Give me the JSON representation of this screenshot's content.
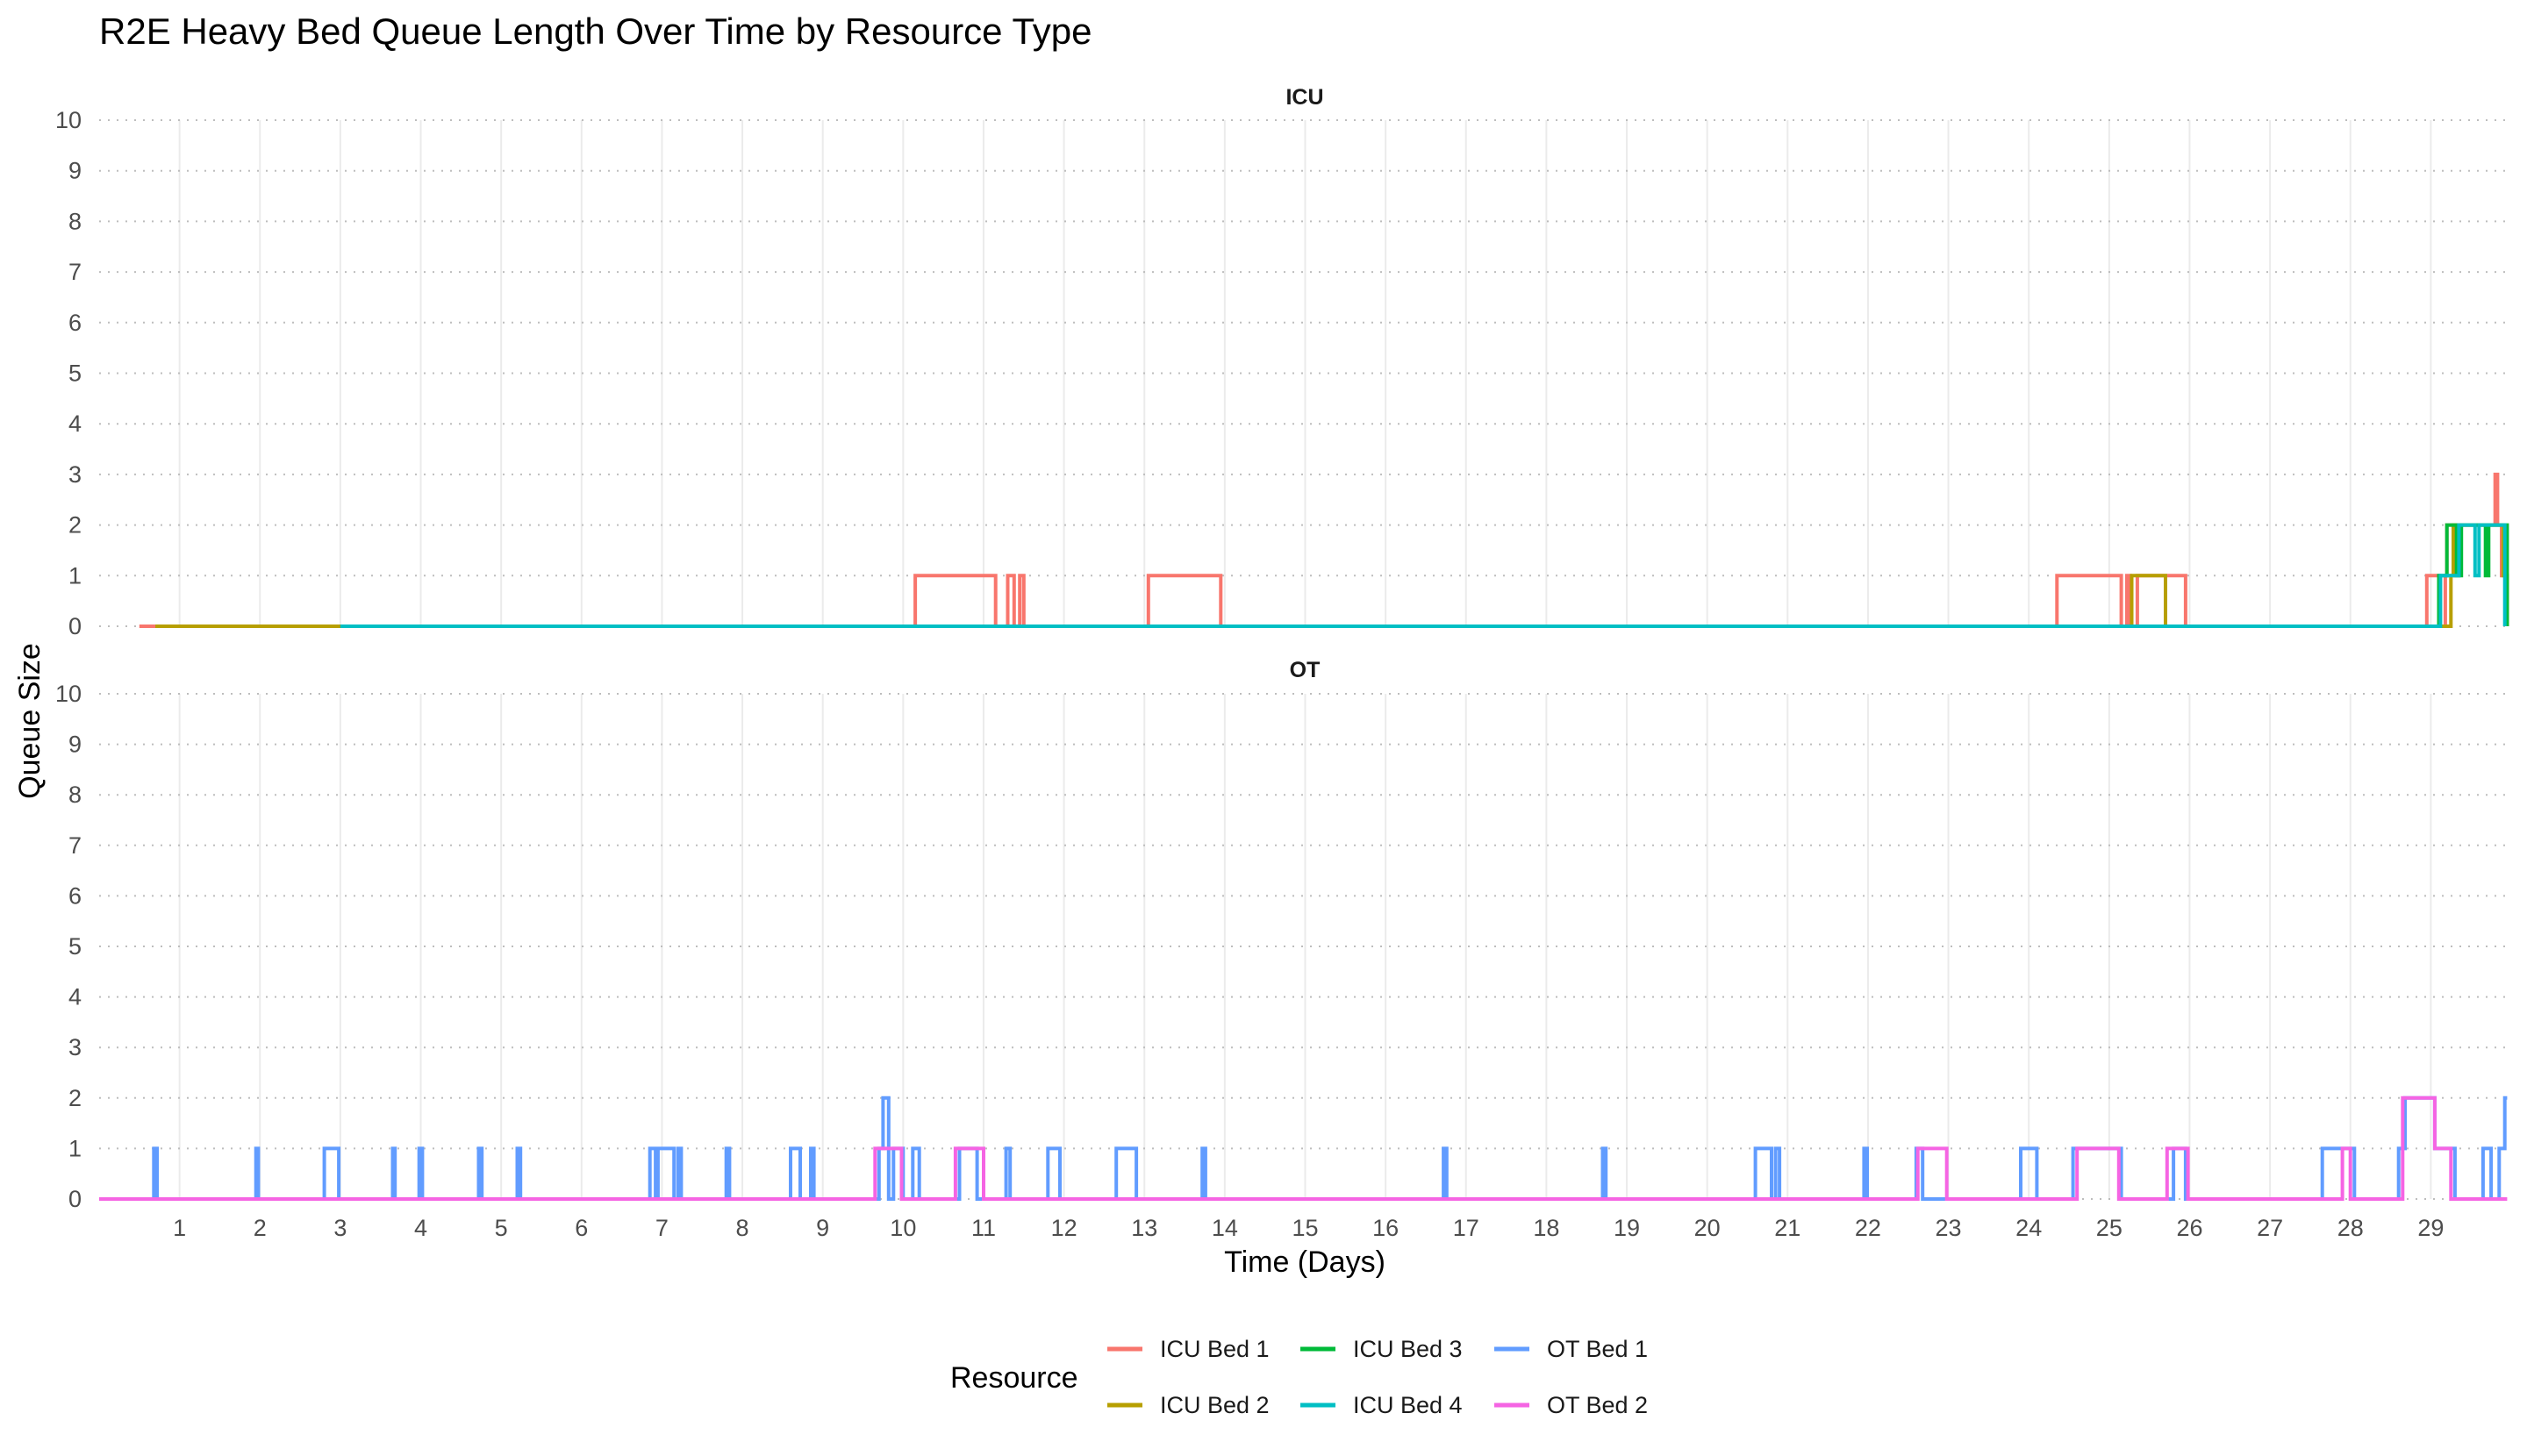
{
  "chart_data": {
    "type": "line",
    "step": true,
    "title": "R2E Heavy Bed Queue Length Over Time by Resource Type",
    "xlabel": "Time (Days)",
    "ylabel": "Queue Size",
    "xlim": [
      0,
      30
    ],
    "ylim": [
      0,
      10
    ],
    "x_ticks": [
      1,
      2,
      3,
      4,
      5,
      6,
      7,
      8,
      9,
      10,
      11,
      12,
      13,
      14,
      15,
      16,
      17,
      18,
      19,
      20,
      21,
      22,
      23,
      24,
      25,
      26,
      27,
      28,
      29
    ],
    "y_ticks": [
      0,
      1,
      2,
      3,
      4,
      5,
      6,
      7,
      8,
      9,
      10
    ],
    "grid": "vertical solid, horizontal dotted",
    "legend": {
      "title": "Resource",
      "position": "bottom",
      "entries": [
        "ICU Bed 1",
        "ICU Bed 2",
        "ICU Bed 3",
        "ICU Bed 4",
        "OT Bed 1",
        "OT Bed 2"
      ]
    },
    "colors": {
      "ICU Bed 1": "#F8766D",
      "ICU Bed 2": "#B79F00",
      "ICU Bed 3": "#00BA38",
      "ICU Bed 4": "#00BFC4",
      "OT Bed 1": "#619CFF",
      "OT Bed 2": "#F564E3"
    },
    "panels": [
      {
        "strip": "ICU",
        "series": [
          {
            "name": "ICU Bed 1",
            "points": [
              [
                0.5,
                0
              ],
              [
                10.15,
                1
              ],
              [
                11.15,
                0
              ],
              [
                11.3,
                1
              ],
              [
                11.38,
                0
              ],
              [
                11.45,
                1
              ],
              [
                11.5,
                0
              ],
              [
                13.05,
                1
              ],
              [
                13.95,
                0
              ],
              [
                24.35,
                1
              ],
              [
                25.15,
                0
              ],
              [
                25.22,
                1
              ],
              [
                25.26,
                0
              ],
              [
                25.35,
                1
              ],
              [
                25.95,
                0
              ],
              [
                28.95,
                1
              ],
              [
                29.1,
                0
              ],
              [
                29.18,
                1
              ],
              [
                29.2,
                2
              ],
              [
                29.3,
                1
              ],
              [
                29.35,
                2
              ],
              [
                29.8,
                3
              ],
              [
                29.83,
                2
              ],
              [
                29.88,
                1
              ],
              [
                29.95,
                0
              ]
            ]
          },
          {
            "name": "ICU Bed 2",
            "points": [
              [
                0.7,
                0
              ],
              [
                25.28,
                1
              ],
              [
                25.7,
                0
              ],
              [
                29.25,
                1
              ],
              [
                29.28,
                2
              ],
              [
                29.9,
                1
              ],
              [
                29.95,
                0
              ]
            ]
          },
          {
            "name": "ICU Bed 3",
            "points": [
              [
                3.0,
                0
              ],
              [
                29.1,
                1
              ],
              [
                29.2,
                2
              ],
              [
                29.32,
                1
              ],
              [
                29.38,
                2
              ],
              [
                29.68,
                1
              ],
              [
                29.72,
                2
              ],
              [
                29.95,
                0
              ]
            ]
          },
          {
            "name": "ICU Bed 4",
            "points": [
              [
                3.0,
                0
              ],
              [
                29.12,
                1
              ],
              [
                29.35,
                2
              ],
              [
                29.55,
                1
              ],
              [
                29.6,
                2
              ],
              [
                29.92,
                0
              ]
            ]
          }
        ]
      },
      {
        "strip": "OT",
        "series": [
          {
            "name": "OT Bed 1",
            "points": [
              [
                0,
                0
              ],
              [
                0.68,
                1
              ],
              [
                0.72,
                0
              ],
              [
                1.95,
                1
              ],
              [
                1.98,
                0
              ],
              [
                2.8,
                1
              ],
              [
                2.98,
                0
              ],
              [
                3.65,
                1
              ],
              [
                3.68,
                0
              ],
              [
                3.98,
                1
              ],
              [
                4.02,
                0
              ],
              [
                4.72,
                1
              ],
              [
                4.76,
                0
              ],
              [
                5.2,
                1
              ],
              [
                5.24,
                0
              ],
              [
                6.85,
                1
              ],
              [
                6.92,
                0
              ],
              [
                6.95,
                1
              ],
              [
                7.15,
                0
              ],
              [
                7.2,
                1
              ],
              [
                7.24,
                0
              ],
              [
                7.8,
                1
              ],
              [
                7.84,
                0
              ],
              [
                8.6,
                1
              ],
              [
                8.72,
                0
              ],
              [
                8.85,
                1
              ],
              [
                8.89,
                0
              ],
              [
                9.7,
                1
              ],
              [
                9.75,
                2
              ],
              [
                9.82,
                0
              ],
              [
                9.88,
                1
              ],
              [
                10.0,
                0
              ],
              [
                10.12,
                1
              ],
              [
                10.2,
                0
              ],
              [
                10.7,
                1
              ],
              [
                10.92,
                0
              ],
              [
                11.28,
                1
              ],
              [
                11.33,
                0
              ],
              [
                11.8,
                1
              ],
              [
                11.95,
                0
              ],
              [
                12.65,
                1
              ],
              [
                12.9,
                0
              ],
              [
                13.72,
                1
              ],
              [
                13.76,
                0
              ],
              [
                16.72,
                1
              ],
              [
                16.76,
                0
              ],
              [
                18.7,
                1
              ],
              [
                18.74,
                0
              ],
              [
                20.6,
                1
              ],
              [
                20.8,
                0
              ],
              [
                20.85,
                1
              ],
              [
                20.9,
                0
              ],
              [
                21.95,
                1
              ],
              [
                21.99,
                0
              ],
              [
                22.6,
                1
              ],
              [
                22.68,
                0
              ],
              [
                23.9,
                1
              ],
              [
                24.1,
                0
              ],
              [
                24.55,
                1
              ],
              [
                25.15,
                0
              ],
              [
                25.8,
                1
              ],
              [
                25.95,
                0
              ],
              [
                27.65,
                1
              ],
              [
                28.05,
                0
              ],
              [
                28.6,
                1
              ],
              [
                28.68,
                2
              ],
              [
                29.05,
                1
              ],
              [
                29.3,
                0
              ],
              [
                29.65,
                1
              ],
              [
                29.75,
                0
              ],
              [
                29.85,
                1
              ],
              [
                29.92,
                2
              ],
              [
                29.95,
                2
              ]
            ]
          },
          {
            "name": "OT Bed 2",
            "points": [
              [
                0,
                0
              ],
              [
                9.65,
                1
              ],
              [
                9.98,
                0
              ],
              [
                10.65,
                1
              ],
              [
                11.0,
                0
              ],
              [
                22.62,
                1
              ],
              [
                22.98,
                0
              ],
              [
                24.6,
                1
              ],
              [
                25.12,
                0
              ],
              [
                25.72,
                1
              ],
              [
                25.98,
                0
              ],
              [
                27.9,
                1
              ],
              [
                28.0,
                0
              ],
              [
                28.65,
                2
              ],
              [
                29.05,
                1
              ],
              [
                29.25,
                0
              ],
              [
                29.95,
                0
              ]
            ]
          }
        ]
      }
    ]
  }
}
